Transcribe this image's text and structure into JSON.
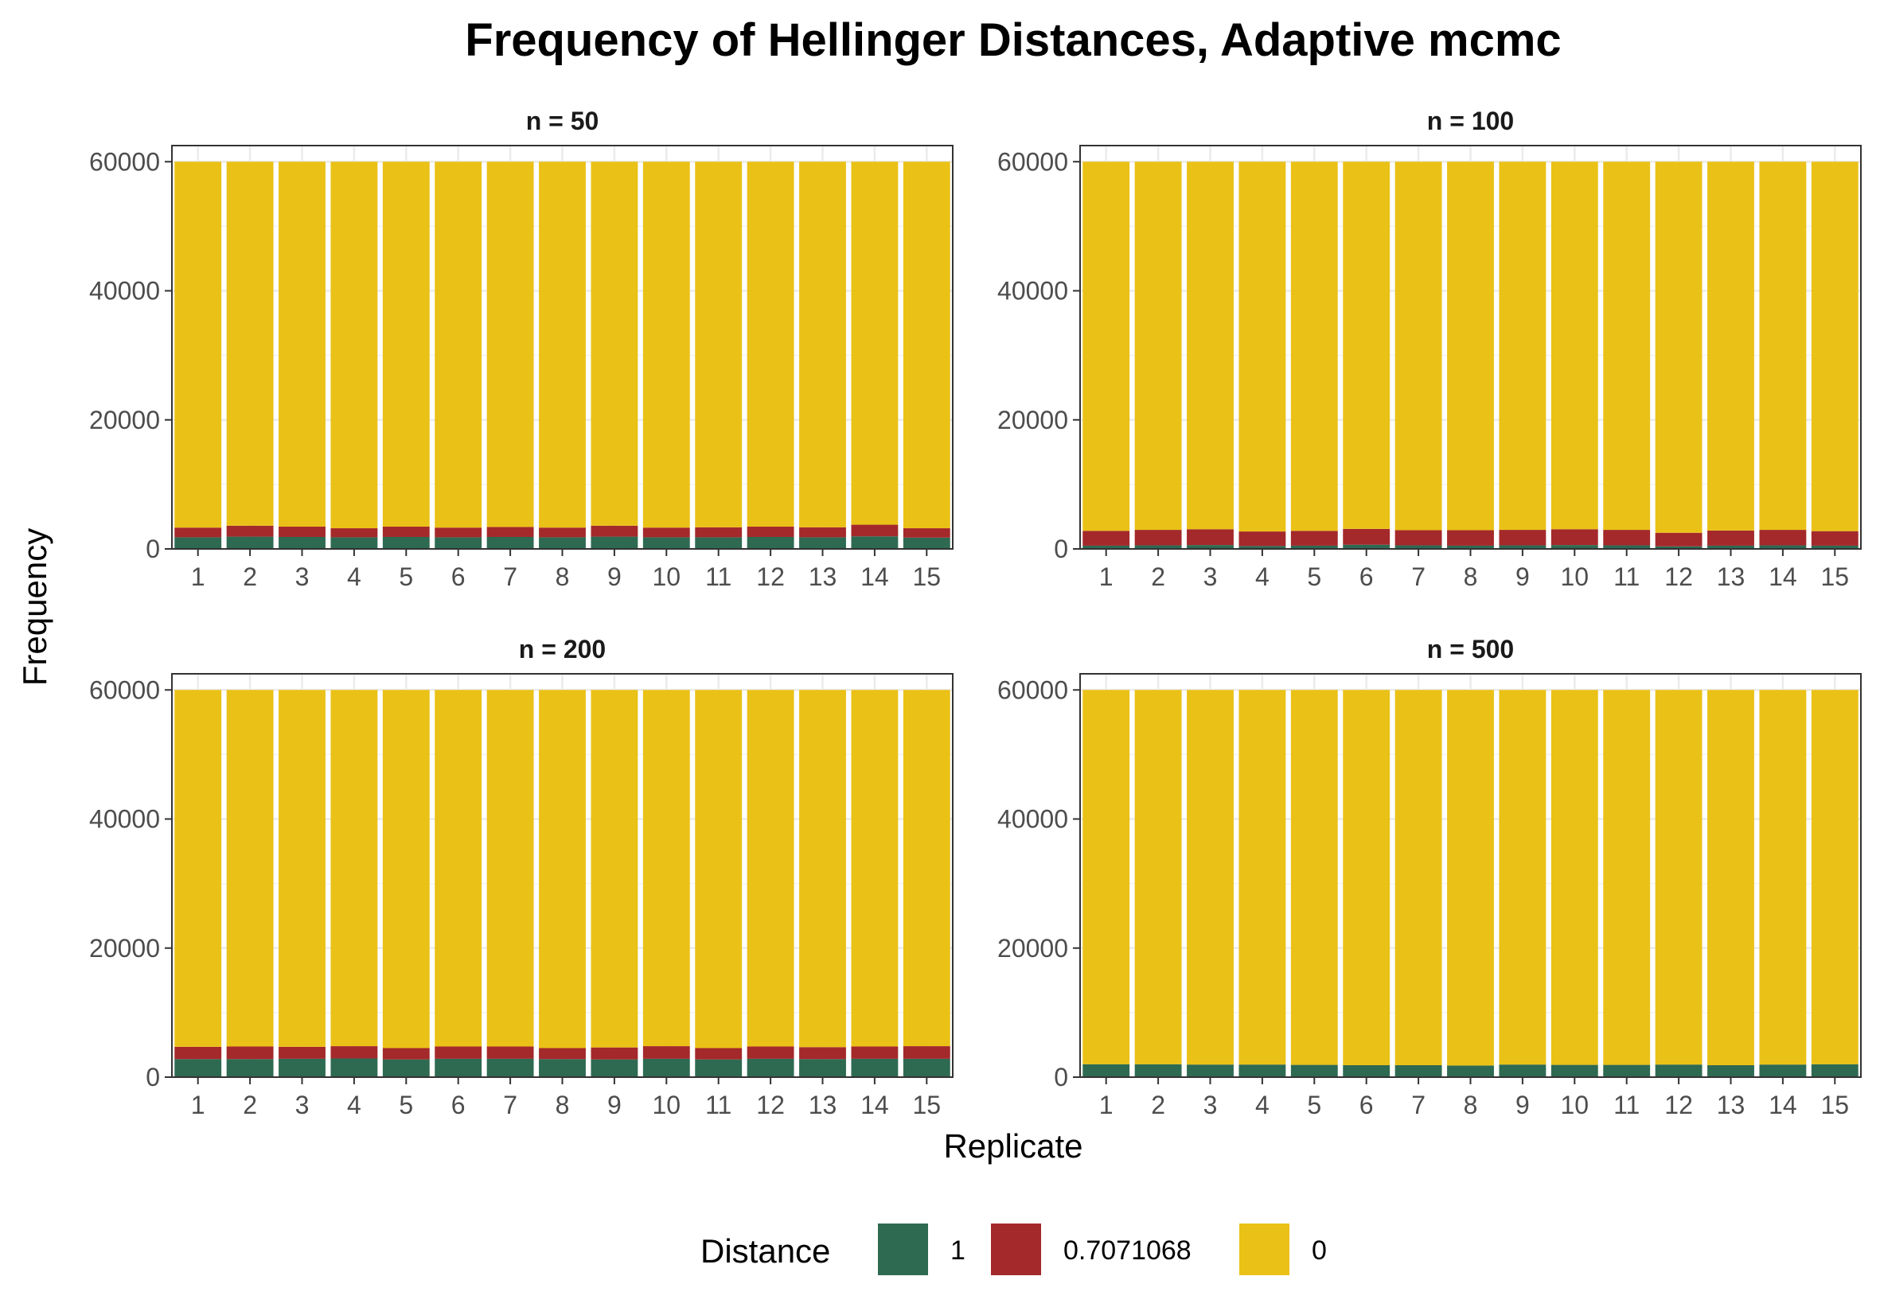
{
  "chart_data": {
    "type": "bar",
    "stacked": true,
    "title": "Frequency of Hellinger Distances, Adaptive mcmc",
    "xlabel": "Replicate",
    "ylabel": "Frequency",
    "ylim": [
      0,
      62500
    ],
    "y_ticks": [
      0,
      20000,
      40000,
      60000
    ],
    "categories": [
      "1",
      "2",
      "3",
      "4",
      "5",
      "6",
      "7",
      "8",
      "9",
      "10",
      "11",
      "12",
      "13",
      "14",
      "15"
    ],
    "grid": true,
    "legend": {
      "title": "Distance",
      "placement": "bottom",
      "entries": [
        {
          "label": "1",
          "color": "#2e6a52"
        },
        {
          "label": "0.7071068",
          "color": "#a4292b"
        },
        {
          "label": "0",
          "color": "#eac117"
        }
      ]
    },
    "panels": [
      {
        "label": "n = 50",
        "series": [
          {
            "name": "1",
            "values": [
              1800,
              1900,
              1850,
              1800,
              1850,
              1800,
              1850,
              1800,
              1900,
              1800,
              1800,
              1850,
              1800,
              1950,
              1750
            ]
          },
          {
            "name": "0.7071068",
            "values": [
              1500,
              1700,
              1600,
              1400,
              1600,
              1500,
              1550,
              1500,
              1700,
              1500,
              1550,
              1600,
              1550,
              1800,
              1450
            ]
          },
          {
            "name": "0",
            "values": [
              56700,
              56400,
              56550,
              56800,
              56550,
              56700,
              56600,
              56700,
              56400,
              56700,
              56650,
              56550,
              56650,
              56250,
              56800
            ]
          }
        ]
      },
      {
        "label": "n = 100",
        "series": [
          {
            "name": "1",
            "values": [
              500,
              550,
              600,
              450,
              500,
              650,
              550,
              500,
              550,
              600,
              550,
              400,
              500,
              550,
              500
            ]
          },
          {
            "name": "0.7071068",
            "values": [
              2300,
              2400,
              2450,
              2250,
              2300,
              2450,
              2350,
              2400,
              2400,
              2450,
              2400,
              2100,
              2350,
              2400,
              2250
            ]
          },
          {
            "name": "0",
            "values": [
              57200,
              57050,
              56950,
              57300,
              57200,
              56900,
              57100,
              57100,
              57050,
              56950,
              57050,
              57500,
              57150,
              57050,
              57250
            ]
          }
        ]
      },
      {
        "label": "n = 200",
        "series": [
          {
            "name": "1",
            "values": [
              2800,
              2800,
              2850,
              2900,
              2750,
              2850,
              2850,
              2800,
              2750,
              2850,
              2750,
              2850,
              2800,
              2850,
              2850
            ]
          },
          {
            "name": "0.7071068",
            "values": [
              1900,
              1950,
              1850,
              1900,
              1750,
              1900,
              1900,
              1700,
              1850,
              1950,
              1750,
              1900,
              1850,
              1900,
              1950
            ]
          },
          {
            "name": "0",
            "values": [
              55300,
              55250,
              55300,
              55200,
              55500,
              55250,
              55250,
              55500,
              55400,
              55200,
              55500,
              55250,
              55350,
              55250,
              55200
            ]
          }
        ]
      },
      {
        "label": "n = 500",
        "series": [
          {
            "name": "1",
            "values": [
              2000,
              2000,
              1950,
              1950,
              1900,
              1850,
              1850,
              1800,
              1950,
              1900,
              1900,
              1950,
              1850,
              1950,
              2000
            ]
          },
          {
            "name": "0.7071068",
            "values": [
              0,
              0,
              0,
              0,
              0,
              0,
              0,
              0,
              0,
              0,
              0,
              0,
              0,
              0,
              0
            ]
          },
          {
            "name": "0",
            "values": [
              58000,
              58000,
              58050,
              58050,
              58100,
              58150,
              58150,
              58200,
              58050,
              58100,
              58100,
              58050,
              58150,
              58050,
              58000
            ]
          }
        ]
      }
    ]
  }
}
